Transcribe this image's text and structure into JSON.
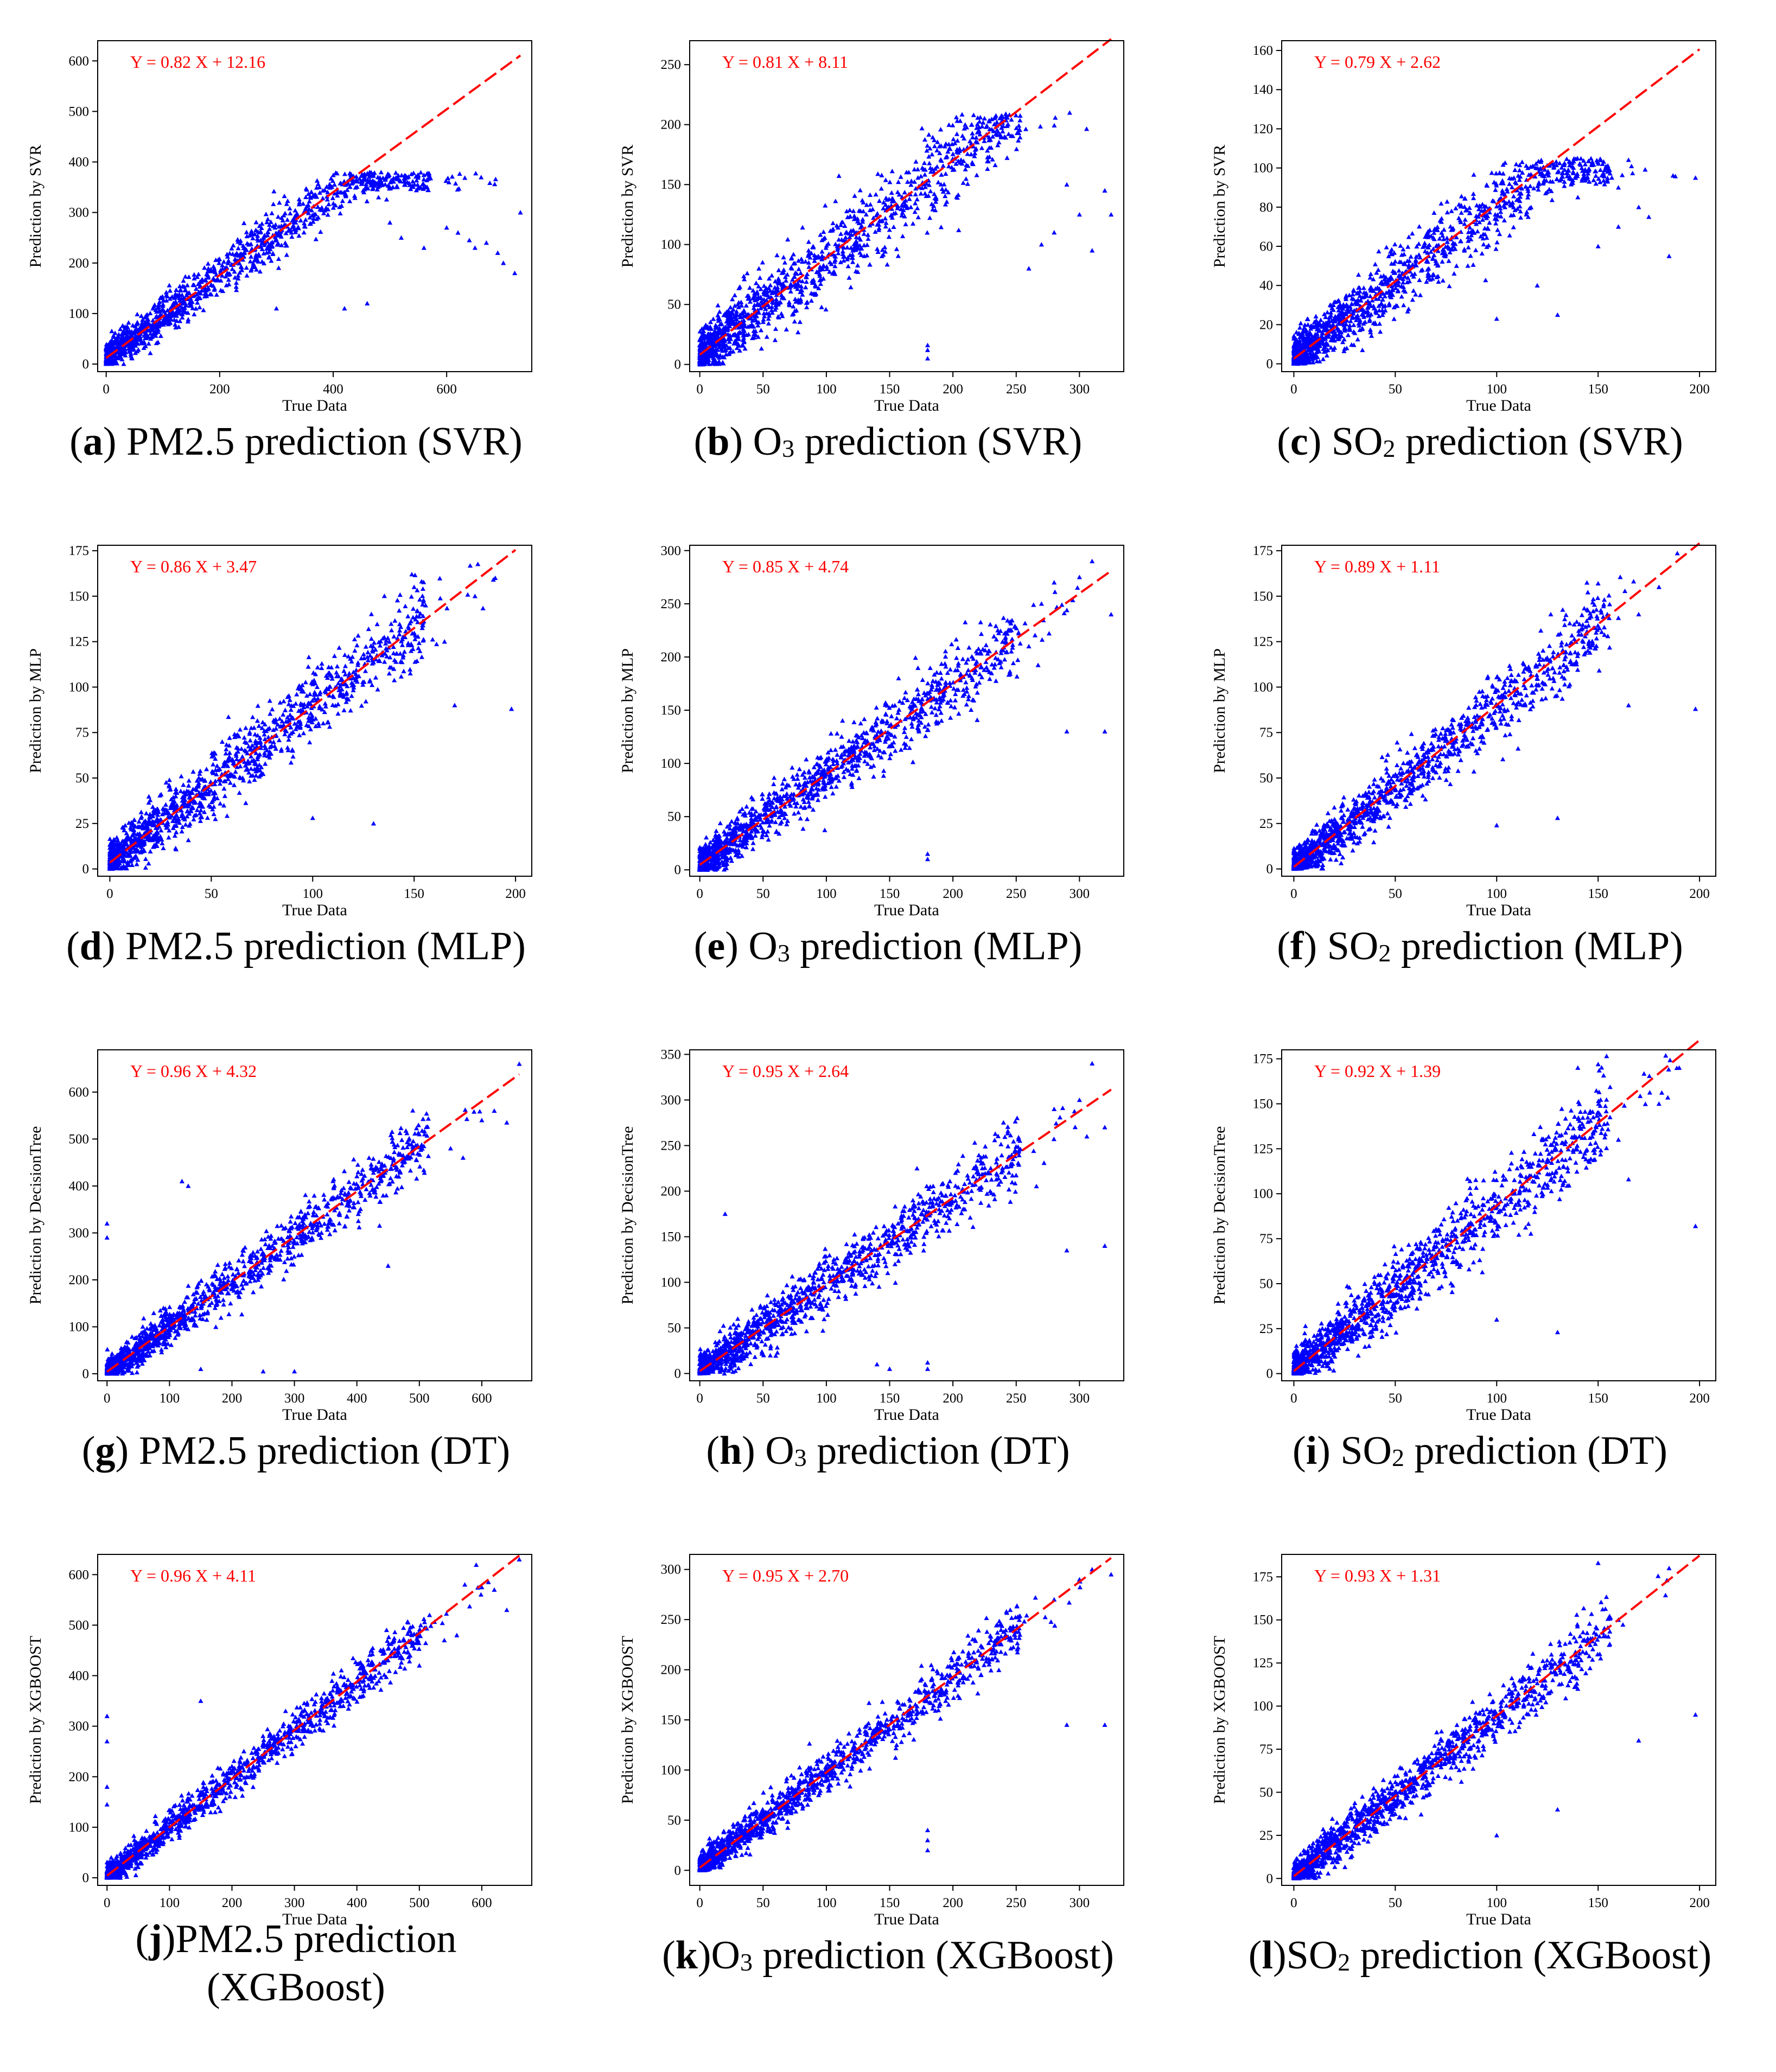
{
  "chart_data": [
    {
      "id": "a",
      "type": "scatter",
      "letter": "a",
      "caption_pre": "PM2.5",
      "caption_sub": "",
      "caption_post": " prediction (SVR)",
      "equation": "Y = 0.82 X + 12.16",
      "slope": 0.82,
      "intercept": 12.16,
      "xlabel": "True Data",
      "ylabel": "Prediction by SVR",
      "xlim": [
        -15,
        750
      ],
      "ylim": [
        -15,
        640
      ],
      "xticks": [
        0,
        200,
        400,
        600
      ],
      "yticks": [
        0,
        100,
        200,
        300,
        400,
        500,
        600
      ],
      "point_color": "#0000ff",
      "line_color": "#ff0000",
      "clipmax": 380,
      "noise": 24,
      "xmax": 730,
      "outliers": [
        [
          600,
          270
        ],
        [
          620,
          260
        ],
        [
          640,
          245
        ],
        [
          650,
          230
        ],
        [
          670,
          240
        ],
        [
          690,
          220
        ],
        [
          700,
          200
        ],
        [
          720,
          180
        ],
        [
          730,
          300
        ],
        [
          560,
          230
        ],
        [
          520,
          250
        ],
        [
          500,
          280
        ],
        [
          480,
          330
        ],
        [
          460,
          120
        ],
        [
          420,
          110
        ],
        [
          300,
          110
        ]
      ]
    },
    {
      "id": "b",
      "type": "scatter",
      "letter": "b",
      "caption_pre": "O",
      "caption_sub": "3",
      "caption_post": " prediction (SVR)",
      "equation": "Y = 0.81 X + 8.11",
      "slope": 0.81,
      "intercept": 8.11,
      "xlabel": "True Data",
      "ylabel": "Prediction by SVR",
      "xlim": [
        -8,
        335
      ],
      "ylim": [
        -6,
        270
      ],
      "xticks": [
        0,
        50,
        100,
        150,
        200,
        250,
        300
      ],
      "yticks": [
        0,
        50,
        100,
        150,
        200,
        250
      ],
      "point_color": "#0000ff",
      "line_color": "#ff0000",
      "clipmax": 210,
      "noise": 16,
      "xmax": 325,
      "outliers": [
        [
          180,
          5
        ],
        [
          180,
          12
        ],
        [
          180,
          16
        ],
        [
          290,
          150
        ],
        [
          300,
          125
        ],
        [
          310,
          95
        ],
        [
          320,
          145
        ],
        [
          325,
          125
        ],
        [
          260,
          80
        ],
        [
          270,
          100
        ],
        [
          280,
          110
        ]
      ]
    },
    {
      "id": "c",
      "type": "scatter",
      "letter": "c",
      "caption_pre": "SO",
      "caption_sub": "2",
      "caption_post": " prediction (SVR)",
      "equation": "Y = 0.79 X + 2.62",
      "slope": 0.79,
      "intercept": 2.62,
      "xlabel": "True Data",
      "ylabel": "Prediction by SVR",
      "xlim": [
        -6,
        208
      ],
      "ylim": [
        -4,
        165
      ],
      "xticks": [
        0,
        50,
        100,
        150,
        200
      ],
      "yticks": [
        0,
        20,
        40,
        60,
        80,
        100,
        120,
        140,
        160
      ],
      "point_color": "#0000ff",
      "line_color": "#ff0000",
      "clipmax": 105,
      "noise": 9,
      "xmax": 200,
      "outliers": [
        [
          198,
          95
        ],
        [
          185,
          55
        ],
        [
          175,
          75
        ],
        [
          160,
          70
        ],
        [
          150,
          60
        ],
        [
          140,
          85
        ],
        [
          130,
          25
        ],
        [
          120,
          40
        ],
        [
          100,
          23
        ],
        [
          160,
          90
        ],
        [
          170,
          80
        ]
      ]
    },
    {
      "id": "d",
      "type": "scatter",
      "letter": "d",
      "caption_pre": "PM2.5",
      "caption_sub": "",
      "caption_post": " prediction (MLP)",
      "equation": "Y = 0.86 X + 3.47",
      "slope": 0.86,
      "intercept": 3.47,
      "xlabel": "True Data",
      "ylabel": "Prediction by MLP",
      "xlim": [
        -6,
        208
      ],
      "ylim": [
        -4,
        178
      ],
      "xticks": [
        0,
        50,
        100,
        150,
        200
      ],
      "yticks": [
        0,
        25,
        50,
        75,
        100,
        125,
        150,
        175
      ],
      "point_color": "#0000ff",
      "line_color": "#ff0000",
      "clipmax": 1000,
      "noise": 9,
      "xmax": 200,
      "outliers": [
        [
          198,
          88
        ],
        [
          180,
          150
        ],
        [
          165,
          125
        ],
        [
          150,
          155
        ],
        [
          130,
          25
        ],
        [
          100,
          28
        ],
        [
          170,
          90
        ],
        [
          190,
          160
        ],
        [
          120,
          105
        ],
        [
          140,
          110
        ]
      ]
    },
    {
      "id": "e",
      "type": "scatter",
      "letter": "e",
      "caption_pre": "O",
      "caption_sub": "3",
      "caption_post": " prediction (MLP)",
      "equation": "Y = 0.85 X + 4.74",
      "slope": 0.85,
      "intercept": 4.74,
      "xlabel": "True Data",
      "ylabel": "Prediction by MLP",
      "xlim": [
        -8,
        335
      ],
      "ylim": [
        -6,
        305
      ],
      "xticks": [
        0,
        50,
        100,
        150,
        200,
        250,
        300
      ],
      "yticks": [
        0,
        50,
        100,
        150,
        200,
        250,
        300
      ],
      "point_color": "#0000ff",
      "line_color": "#ff0000",
      "clipmax": 1000,
      "noise": 13,
      "xmax": 325,
      "outliers": [
        [
          180,
          10
        ],
        [
          180,
          15
        ],
        [
          290,
          130
        ],
        [
          320,
          130
        ],
        [
          325,
          240
        ],
        [
          310,
          290
        ],
        [
          300,
          275
        ],
        [
          280,
          270
        ],
        [
          270,
          250
        ],
        [
          260,
          210
        ]
      ]
    },
    {
      "id": "f",
      "type": "scatter",
      "letter": "f",
      "caption_pre": "SO",
      "caption_sub": "2",
      "caption_post": " prediction (MLP)",
      "equation": "Y = 0.89 X + 1.11",
      "slope": 0.89,
      "intercept": 1.11,
      "xlabel": "True Data",
      "ylabel": "Prediction by MLP",
      "xlim": [
        -6,
        208
      ],
      "ylim": [
        -4,
        178
      ],
      "xticks": [
        0,
        50,
        100,
        150,
        200
      ],
      "yticks": [
        0,
        25,
        50,
        75,
        100,
        125,
        150,
        175
      ],
      "point_color": "#0000ff",
      "line_color": "#ff0000",
      "clipmax": 1000,
      "noise": 8,
      "xmax": 200,
      "outliers": [
        [
          198,
          88
        ],
        [
          180,
          155
        ],
        [
          165,
          90
        ],
        [
          150,
          157
        ],
        [
          130,
          28
        ],
        [
          100,
          24
        ],
        [
          170,
          140
        ],
        [
          120,
          105
        ],
        [
          160,
          138
        ]
      ]
    },
    {
      "id": "g",
      "type": "scatter",
      "letter": "g",
      "caption_pre": "PM2.5",
      "caption_sub": "",
      "caption_post": " prediction (DT)",
      "equation": "Y = 0.96 X + 4.32",
      "slope": 0.96,
      "intercept": 4.32,
      "xlabel": "True Data",
      "ylabel": "Prediction by DecisionTree",
      "xlim": [
        -15,
        680
      ],
      "ylim": [
        -15,
        690
      ],
      "xticks": [
        0,
        100,
        200,
        300,
        400,
        500,
        600
      ],
      "yticks": [
        0,
        100,
        200,
        300,
        400,
        500,
        600
      ],
      "point_color": "#0000ff",
      "line_color": "#ff0000",
      "clipmax": 10000,
      "noise": 24,
      "xmax": 660,
      "outliers": [
        [
          660,
          660
        ],
        [
          640,
          535
        ],
        [
          620,
          560
        ],
        [
          600,
          540
        ],
        [
          570,
          460
        ],
        [
          550,
          480
        ],
        [
          300,
          5
        ],
        [
          250,
          5
        ],
        [
          150,
          10
        ],
        [
          0,
          320
        ],
        [
          0,
          290
        ],
        [
          120,
          410
        ],
        [
          130,
          400
        ],
        [
          450,
          230
        ],
        [
          500,
          510
        ]
      ]
    },
    {
      "id": "h",
      "type": "scatter",
      "letter": "h",
      "caption_pre": "O",
      "caption_sub": "3",
      "caption_post": " prediction (DT)",
      "equation": "Y = 0.95 X + 2.64",
      "slope": 0.95,
      "intercept": 2.64,
      "xlabel": "True Data",
      "ylabel": "Prediction by DecisionTree",
      "xlim": [
        -8,
        335
      ],
      "ylim": [
        -8,
        355
      ],
      "xticks": [
        0,
        50,
        100,
        150,
        200,
        250,
        300
      ],
      "yticks": [
        0,
        50,
        100,
        150,
        200,
        250,
        300,
        350
      ],
      "point_color": "#0000ff",
      "line_color": "#ff0000",
      "clipmax": 10000,
      "noise": 15,
      "xmax": 325,
      "outliers": [
        [
          310,
          340
        ],
        [
          320,
          270
        ],
        [
          320,
          140
        ],
        [
          290,
          135
        ],
        [
          180,
          5
        ],
        [
          180,
          12
        ],
        [
          150,
          5
        ],
        [
          140,
          10
        ],
        [
          20,
          175
        ],
        [
          300,
          300
        ],
        [
          280,
          290
        ]
      ]
    },
    {
      "id": "i",
      "type": "scatter",
      "letter": "i",
      "caption_pre": "SO",
      "caption_sub": "2",
      "caption_post": " prediction (DT)",
      "equation": "Y = 0.92 X + 1.39",
      "slope": 0.92,
      "intercept": 1.39,
      "xlabel": "True Data",
      "ylabel": "Prediction by DecisionTree",
      "xlim": [
        -6,
        208
      ],
      "ylim": [
        -4,
        180
      ],
      "xticks": [
        0,
        50,
        100,
        150,
        200
      ],
      "yticks": [
        0,
        25,
        50,
        75,
        100,
        125,
        150,
        175
      ],
      "point_color": "#0000ff",
      "line_color": "#ff0000",
      "clipmax": 10000,
      "noise": 9,
      "xmax": 200,
      "outliers": [
        [
          198,
          82
        ],
        [
          190,
          170
        ],
        [
          180,
          150
        ],
        [
          165,
          108
        ],
        [
          150,
          172
        ],
        [
          140,
          170
        ],
        [
          130,
          23
        ],
        [
          100,
          30
        ],
        [
          160,
          130
        ]
      ]
    },
    {
      "id": "j",
      "type": "scatter",
      "letter": "j",
      "caption_pre": "PM2.5",
      "caption_sub": "",
      "caption_post": " prediction",
      "caption_line2": "(XGBoost)",
      "equation": "Y = 0.96 X + 4.11",
      "slope": 0.96,
      "intercept": 4.11,
      "xlabel": "True Data",
      "ylabel": "Prediction by XGBOOST",
      "xlim": [
        -15,
        680
      ],
      "ylim": [
        -15,
        640
      ],
      "xticks": [
        0,
        100,
        200,
        300,
        400,
        500,
        600
      ],
      "yticks": [
        0,
        100,
        200,
        300,
        400,
        500,
        600
      ],
      "point_color": "#0000ff",
      "line_color": "#ff0000",
      "clipmax": 10000,
      "noise": 18,
      "xmax": 660,
      "outliers": [
        [
          660,
          630
        ],
        [
          640,
          530
        ],
        [
          620,
          570
        ],
        [
          600,
          575
        ],
        [
          560,
          480
        ],
        [
          540,
          470
        ],
        [
          0,
          320
        ],
        [
          0,
          270
        ],
        [
          0,
          180
        ],
        [
          0,
          145
        ],
        [
          150,
          350
        ],
        [
          500,
          420
        ]
      ]
    },
    {
      "id": "k",
      "type": "scatter",
      "letter": "k",
      "caption_pre": "O",
      "caption_sub": "3",
      "caption_post": " prediction (XGBoost)",
      "equation": "Y = 0.95 X + 2.70",
      "slope": 0.95,
      "intercept": 2.7,
      "xlabel": "True Data",
      "ylabel": "Prediction by XGBOOST",
      "xlim": [
        -8,
        335
      ],
      "ylim": [
        -15,
        315
      ],
      "xticks": [
        0,
        50,
        100,
        150,
        200,
        250,
        300
      ],
      "yticks": [
        0,
        50,
        100,
        150,
        200,
        250,
        300
      ],
      "point_color": "#0000ff",
      "line_color": "#ff0000",
      "clipmax": 10000,
      "noise": 11,
      "xmax": 325,
      "outliers": [
        [
          320,
          145
        ],
        [
          325,
          295
        ],
        [
          310,
          300
        ],
        [
          290,
          145
        ],
        [
          180,
          20
        ],
        [
          180,
          30
        ],
        [
          180,
          40
        ],
        [
          280,
          270
        ],
        [
          300,
          290
        ]
      ]
    },
    {
      "id": "l",
      "type": "scatter",
      "letter": "l",
      "caption_pre": "SO",
      "caption_sub": "2",
      "caption_post": " prediction (XGBoost)",
      "equation": "Y = 0.93 X + 1.31",
      "slope": 0.93,
      "intercept": 1.31,
      "xlabel": "True Data",
      "ylabel": "Prediction by XGBOOST",
      "xlim": [
        -6,
        208
      ],
      "ylim": [
        -4,
        188
      ],
      "xticks": [
        0,
        50,
        100,
        150,
        200
      ],
      "yticks": [
        0,
        25,
        50,
        75,
        100,
        125,
        150,
        175
      ],
      "point_color": "#0000ff",
      "line_color": "#ff0000",
      "clipmax": 10000,
      "noise": 7,
      "xmax": 200,
      "outliers": [
        [
          198,
          95
        ],
        [
          185,
          180
        ],
        [
          170,
          80
        ],
        [
          150,
          183
        ],
        [
          130,
          40
        ],
        [
          100,
          25
        ],
        [
          160,
          150
        ],
        [
          140,
          110
        ]
      ]
    }
  ]
}
